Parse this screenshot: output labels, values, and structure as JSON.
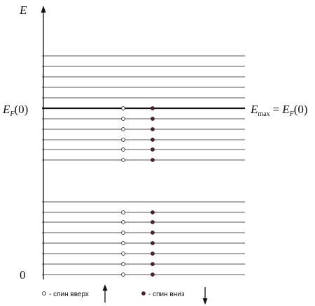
{
  "axis_label": "E",
  "zero_label": "0",
  "fermi_label": {
    "main": "E",
    "sub": "F",
    "arg": "(0)"
  },
  "max_label": {
    "main": "E",
    "sub": "max",
    "eq": "=",
    "main2": "E",
    "sub2": "F",
    "arg": "(0)"
  },
  "legend": {
    "spin_up": "- спин вверх",
    "spin_down": "- спин вниз"
  }
}
